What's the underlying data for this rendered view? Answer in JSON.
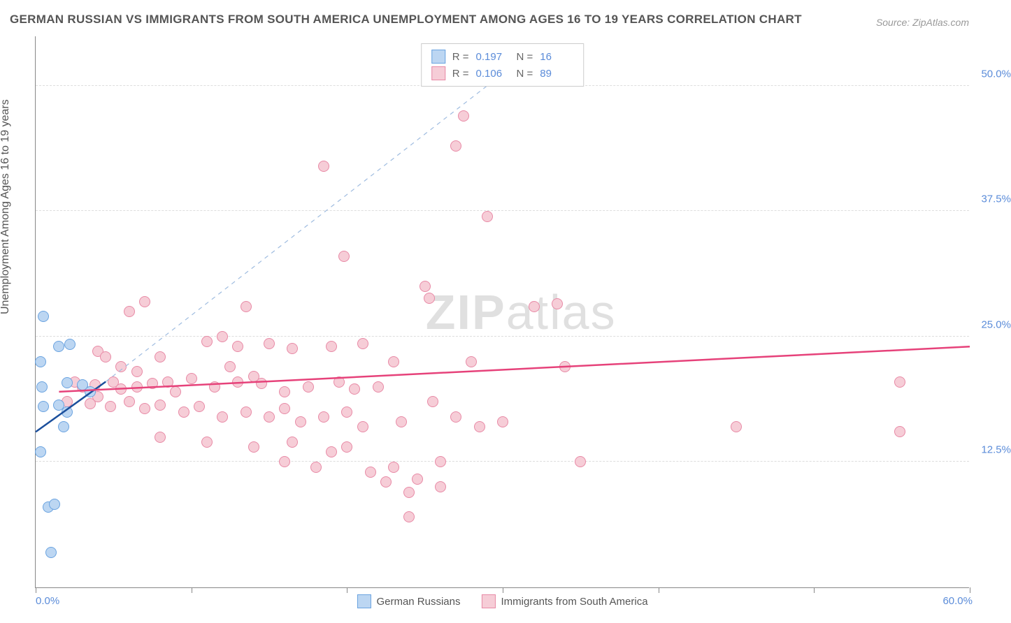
{
  "title": "GERMAN RUSSIAN VS IMMIGRANTS FROM SOUTH AMERICA UNEMPLOYMENT AMONG AGES 16 TO 19 YEARS CORRELATION CHART",
  "source": "Source: ZipAtlas.com",
  "ylabel": "Unemployment Among Ages 16 to 19 years",
  "watermark_a": "ZIP",
  "watermark_b": "atlas",
  "chart": {
    "type": "scatter",
    "xlim": [
      0,
      60
    ],
    "ylim": [
      0,
      55
    ],
    "x_origin_label": "0.0%",
    "x_max_label": "60.0%",
    "yticks": [
      {
        "v": 12.5,
        "label": "12.5%"
      },
      {
        "v": 25.0,
        "label": "25.0%"
      },
      {
        "v": 37.5,
        "label": "37.5%"
      },
      {
        "v": 50.0,
        "label": "50.0%"
      }
    ],
    "xtick_positions": [
      0,
      10,
      20,
      30,
      40,
      50,
      60
    ],
    "background_color": "#ffffff",
    "grid_color": "#dddddd",
    "marker_size": 16,
    "series": [
      {
        "name": "German Russians",
        "fill": "#bcd6f2",
        "stroke": "#6aa3e0",
        "trend": {
          "type": "solid",
          "color": "#1b4f9c",
          "width": 2.5,
          "x1": 0,
          "y1": 15.5,
          "x2": 4.5,
          "y2": 20.5
        },
        "trend_dashed": {
          "color": "#9fbce0",
          "width": 1.2,
          "x1": 4.5,
          "y1": 20.5,
          "x2": 29,
          "y2": 50
        },
        "R": "0.197",
        "N": "16",
        "points": [
          [
            0.5,
            27.0
          ],
          [
            1.5,
            24.0
          ],
          [
            2.2,
            24.2
          ],
          [
            0.3,
            22.5
          ],
          [
            0.4,
            20.0
          ],
          [
            2.0,
            20.4
          ],
          [
            3.0,
            20.2
          ],
          [
            0.5,
            18.0
          ],
          [
            1.5,
            18.2
          ],
          [
            2.0,
            17.5
          ],
          [
            1.8,
            16.0
          ],
          [
            0.3,
            13.5
          ],
          [
            0.8,
            8.0
          ],
          [
            1.2,
            8.3
          ],
          [
            1.0,
            3.5
          ],
          [
            3.5,
            19.5
          ]
        ]
      },
      {
        "name": "Immigrants from South America",
        "fill": "#f6cdd7",
        "stroke": "#e88aa6",
        "trend": {
          "type": "solid",
          "color": "#e6427a",
          "width": 2.5,
          "x1": 1.5,
          "y1": 19.5,
          "x2": 60,
          "y2": 24.0
        },
        "R": "0.106",
        "N": "89",
        "points": [
          [
            27.5,
            47.0
          ],
          [
            27.0,
            44.0
          ],
          [
            18.5,
            42.0
          ],
          [
            29.0,
            37.0
          ],
          [
            19.8,
            33.0
          ],
          [
            25.0,
            30.0
          ],
          [
            25.3,
            28.8
          ],
          [
            13.5,
            28.0
          ],
          [
            7.0,
            28.5
          ],
          [
            32.0,
            28.0
          ],
          [
            33.5,
            28.3
          ],
          [
            6.0,
            27.5
          ],
          [
            4.0,
            23.5
          ],
          [
            4.5,
            23.0
          ],
          [
            8.0,
            23.0
          ],
          [
            11.0,
            24.5
          ],
          [
            12.0,
            25.0
          ],
          [
            13.0,
            24.0
          ],
          [
            15.0,
            24.3
          ],
          [
            16.5,
            23.8
          ],
          [
            19.0,
            24.0
          ],
          [
            21.0,
            24.3
          ],
          [
            23.0,
            22.5
          ],
          [
            28.0,
            22.5
          ],
          [
            34.0,
            22.0
          ],
          [
            2.5,
            20.5
          ],
          [
            3.0,
            20.0
          ],
          [
            3.8,
            20.2
          ],
          [
            5.0,
            20.5
          ],
          [
            5.5,
            19.8
          ],
          [
            6.5,
            20.0
          ],
          [
            7.5,
            20.3
          ],
          [
            8.5,
            20.5
          ],
          [
            9.0,
            19.5
          ],
          [
            10.0,
            20.8
          ],
          [
            11.5,
            20.0
          ],
          [
            13.0,
            20.5
          ],
          [
            14.5,
            20.3
          ],
          [
            16.0,
            19.5
          ],
          [
            17.5,
            20.0
          ],
          [
            19.5,
            20.5
          ],
          [
            20.5,
            19.8
          ],
          [
            22.0,
            20.0
          ],
          [
            55.5,
            20.5
          ],
          [
            2.0,
            18.5
          ],
          [
            3.5,
            18.3
          ],
          [
            4.8,
            18.0
          ],
          [
            6.0,
            18.5
          ],
          [
            7.0,
            17.8
          ],
          [
            8.0,
            18.2
          ],
          [
            9.5,
            17.5
          ],
          [
            10.5,
            18.0
          ],
          [
            12.0,
            17.0
          ],
          [
            13.5,
            17.5
          ],
          [
            15.0,
            17.0
          ],
          [
            16.0,
            17.8
          ],
          [
            17.0,
            16.5
          ],
          [
            18.5,
            17.0
          ],
          [
            20.0,
            17.5
          ],
          [
            21.0,
            16.0
          ],
          [
            23.5,
            16.5
          ],
          [
            28.5,
            16.0
          ],
          [
            30.0,
            16.5
          ],
          [
            45.0,
            16.0
          ],
          [
            8.0,
            15.0
          ],
          [
            11.0,
            14.5
          ],
          [
            14.0,
            14.0
          ],
          [
            16.5,
            14.5
          ],
          [
            19.0,
            13.5
          ],
          [
            20.0,
            14.0
          ],
          [
            55.5,
            15.5
          ],
          [
            16.0,
            12.5
          ],
          [
            18.0,
            12.0
          ],
          [
            21.5,
            11.5
          ],
          [
            23.0,
            12.0
          ],
          [
            26.0,
            12.5
          ],
          [
            35.0,
            12.5
          ],
          [
            22.5,
            10.5
          ],
          [
            24.5,
            10.8
          ],
          [
            24.0,
            9.5
          ],
          [
            26.0,
            10.0
          ],
          [
            24.0,
            7.0
          ],
          [
            4.0,
            19.0
          ],
          [
            5.5,
            22.0
          ],
          [
            6.5,
            21.5
          ],
          [
            12.5,
            22.0
          ],
          [
            14.0,
            21.0
          ],
          [
            25.5,
            18.5
          ],
          [
            27.0,
            17.0
          ]
        ]
      }
    ],
    "bottom_legend": [
      {
        "label": "German Russians",
        "fill": "#bcd6f2",
        "stroke": "#6aa3e0"
      },
      {
        "label": "Immigrants from South America",
        "fill": "#f6cdd7",
        "stroke": "#e88aa6"
      }
    ]
  }
}
